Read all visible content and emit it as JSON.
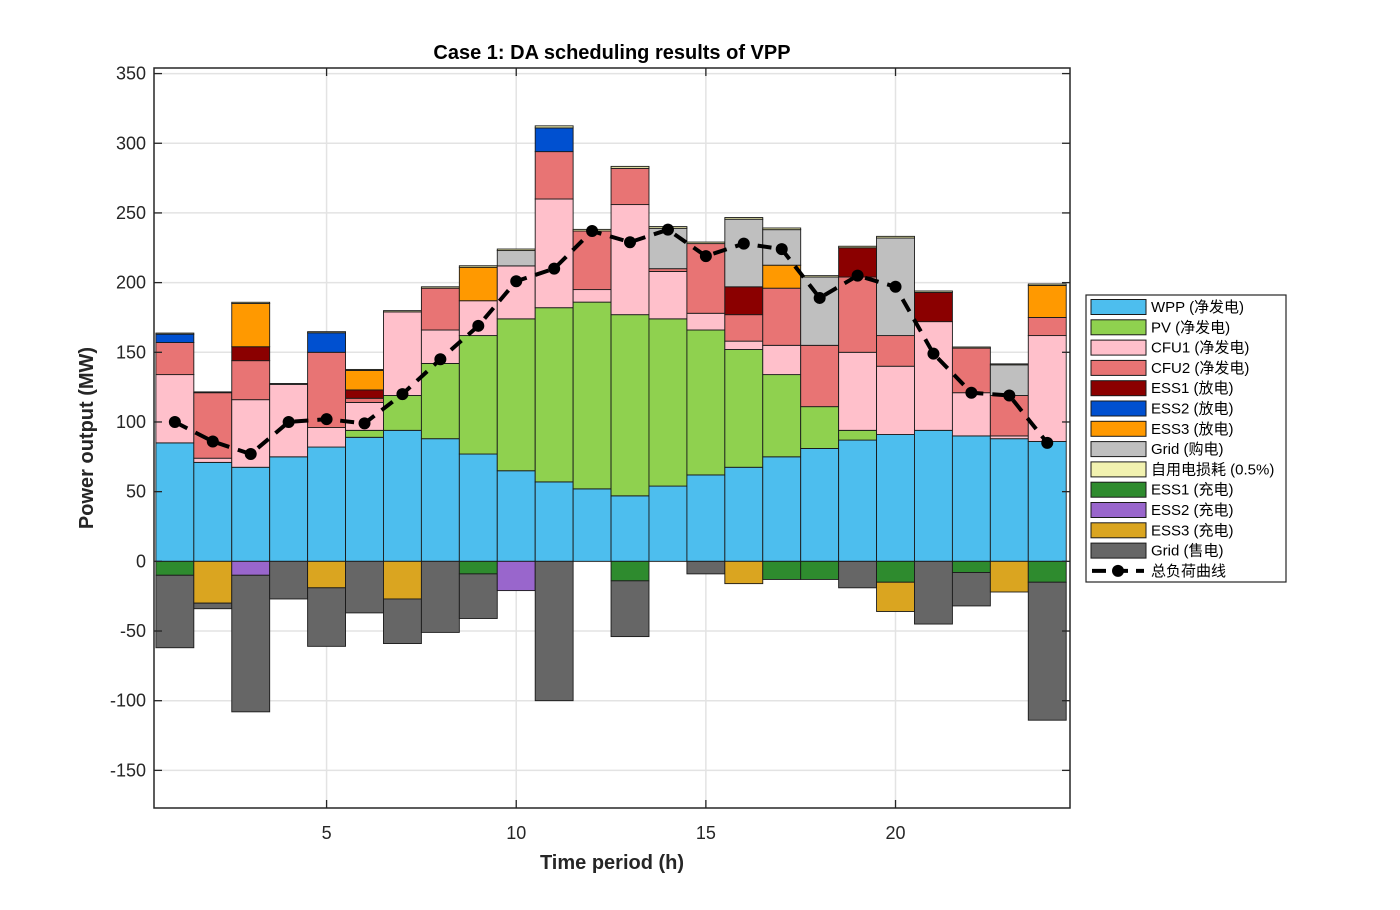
{
  "chart_data": {
    "type": "bar",
    "stacked": true,
    "title": "Case 1: DA scheduling results of VPP",
    "xlabel": "Time period (h)",
    "ylabel": "Power output (MW)",
    "xlim": [
      0.45,
      24.6
    ],
    "ylim": [
      -177,
      354
    ],
    "xticks": [
      5,
      10,
      15,
      20
    ],
    "yticks": [
      -150,
      -100,
      -50,
      0,
      50,
      100,
      150,
      200,
      250,
      300,
      350
    ],
    "grid": true,
    "legend_position": "right",
    "x": [
      1,
      2,
      3,
      4,
      5,
      6,
      7,
      8,
      9,
      10,
      11,
      12,
      13,
      14,
      15,
      16,
      17,
      18,
      19,
      20,
      21,
      22,
      23,
      24
    ],
    "positive_series": [
      {
        "name": "WPP (净发电)",
        "color": "#4DBEEE",
        "values": [
          85,
          71,
          67.5,
          75,
          82,
          89,
          94,
          88,
          77,
          65,
          57,
          52,
          47,
          54,
          62,
          67.5,
          75,
          81,
          87,
          91,
          94,
          90,
          88,
          86
        ]
      },
      {
        "name": "PV (净发电)",
        "color": "#8FD14F",
        "values": [
          0,
          0,
          0,
          0,
          0,
          5,
          25,
          54,
          85,
          109,
          125,
          134,
          130,
          120,
          104,
          84.5,
          59,
          30,
          7,
          0,
          0,
          0,
          0,
          0
        ]
      },
      {
        "name": "CFU1 (净发电)",
        "color": "#FFC0CB",
        "values": [
          49,
          3,
          48.5,
          52,
          14,
          20,
          60,
          24,
          25,
          38,
          78,
          9,
          79,
          34,
          12,
          6,
          21,
          0,
          56,
          49,
          78,
          31,
          2,
          76
        ]
      },
      {
        "name": "CFU2 (净发电)",
        "color": "#E87474",
        "values": [
          23,
          47,
          28,
          0,
          54,
          3,
          0,
          30,
          0,
          0,
          34,
          42,
          26,
          2,
          50,
          19,
          41,
          44,
          54,
          22,
          0,
          32,
          29,
          13
        ]
      },
      {
        "name": "ESS1 (放电)",
        "color": "#8B0000",
        "values": [
          0,
          0,
          10,
          0,
          0,
          6,
          0,
          0,
          0,
          0,
          0,
          0,
          0,
          0,
          0,
          20,
          0,
          0,
          21,
          0,
          21,
          0,
          0,
          0
        ]
      },
      {
        "name": "ESS2 (放电)",
        "color": "#0050D0",
        "values": [
          6,
          0,
          0,
          0,
          14,
          0,
          0,
          0,
          0,
          0,
          17,
          0,
          0,
          0,
          0,
          0,
          0,
          0,
          0,
          0,
          0,
          0,
          0,
          0
        ]
      },
      {
        "name": "ESS3 (放电)",
        "color": "#FF9900",
        "values": [
          0,
          0,
          31,
          0,
          0,
          14,
          0,
          0,
          24,
          0,
          0,
          0,
          0,
          0,
          0,
          0,
          16.5,
          0,
          0,
          0,
          0,
          0,
          0,
          23
        ]
      },
      {
        "name": "Grid (购电)",
        "color": "#BFBFBF",
        "values": [
          0,
          0,
          0,
          0,
          0,
          0,
          0,
          0,
          0,
          11,
          0,
          0,
          0,
          29,
          0,
          48.5,
          25.5,
          49,
          0,
          70,
          0,
          0,
          22,
          0
        ]
      },
      {
        "name": "自用电损耗 (0.5%)",
        "color": "#F2F2B0",
        "values": [
          0.8,
          0.6,
          0.9,
          0.6,
          0.8,
          0.7,
          0.9,
          1.0,
          1.1,
          1.1,
          1.5,
          1.2,
          1.4,
          1.2,
          1.1,
          1.2,
          1.2,
          1.0,
          1.1,
          1.2,
          1.0,
          0.8,
          0.7,
          1.0
        ]
      }
    ],
    "negative_series": [
      {
        "name": "ESS1 (充电)",
        "color": "#2E8B2E",
        "values": [
          -10,
          0,
          0,
          0,
          0,
          0,
          0,
          0,
          -9,
          0,
          0,
          0,
          -14,
          0,
          0,
          0,
          -13,
          -13,
          0,
          -15,
          0,
          -8,
          0,
          -15
        ]
      },
      {
        "name": "ESS2 (充电)",
        "color": "#9966CC",
        "values": [
          0,
          0,
          -10,
          0,
          0,
          0,
          0,
          0,
          0,
          -21,
          0,
          0,
          0,
          0,
          0,
          0,
          0,
          0,
          0,
          0,
          0,
          0,
          0,
          0
        ]
      },
      {
        "name": "ESS3 (充电)",
        "color": "#DAA520",
        "values": [
          0,
          -30,
          0,
          0,
          -19,
          0,
          -27,
          0,
          0,
          0,
          0,
          0,
          0,
          0,
          0,
          -16,
          0,
          0,
          0,
          -21,
          0,
          0,
          -22,
          0
        ]
      },
      {
        "name": "Grid (售电)",
        "color": "#666666",
        "values": [
          -52,
          -4,
          -98,
          -27,
          -42,
          -37,
          -32,
          -51,
          -32,
          0,
          -100,
          0,
          -40,
          0,
          -9,
          0,
          0,
          0,
          -19,
          0,
          -45,
          -24,
          0,
          -99
        ]
      }
    ],
    "line_series": {
      "name": "总负荷曲线",
      "color": "#000000",
      "style": "dashed-with-markers",
      "values": [
        100,
        86,
        77,
        100,
        102,
        99,
        120,
        145,
        169,
        201,
        210,
        237,
        229,
        238,
        219,
        228,
        224,
        189,
        205,
        197,
        149,
        121,
        119,
        85
      ]
    },
    "legend": [
      "WPP (净发电)",
      "PV (净发电)",
      "CFU1 (净发电)",
      "CFU2 (净发电)",
      "ESS1 (放电)",
      "ESS2 (放电)",
      "ESS3 (放电)",
      "Grid (购电)",
      "自用电损耗 (0.5%)",
      "ESS1 (充电)",
      "ESS2 (充电)",
      "ESS3 (充电)",
      "Grid (售电)",
      "总负荷曲线"
    ]
  }
}
